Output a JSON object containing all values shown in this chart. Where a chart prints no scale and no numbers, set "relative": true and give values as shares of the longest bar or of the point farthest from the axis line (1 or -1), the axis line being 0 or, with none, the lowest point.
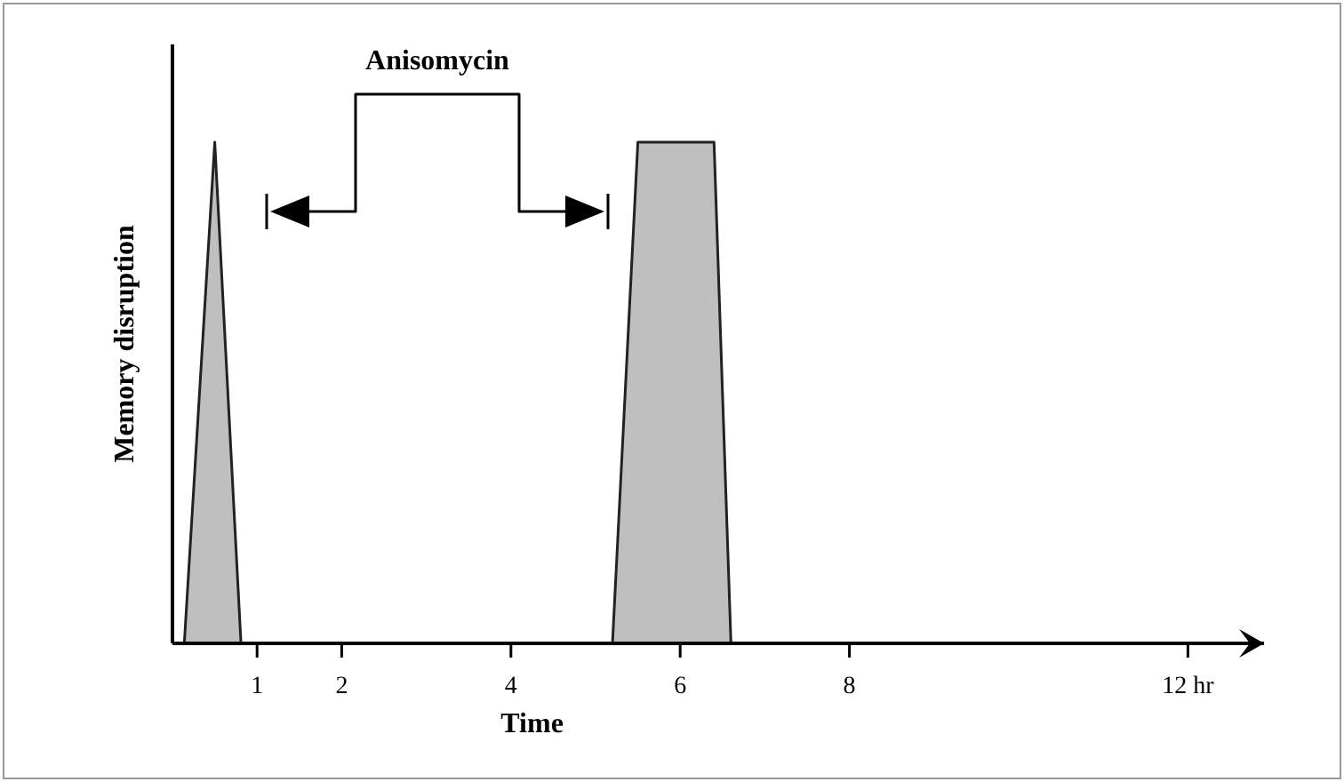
{
  "chart_data": {
    "type": "area",
    "xlabel": "Time",
    "ylabel": "Memory disruption",
    "relative": true,
    "x": [
      0.14,
      0.5,
      0.81,
      5.2,
      5.5,
      6.4,
      6.6
    ],
    "series": [
      {
        "color": "#bfbfbf",
        "values": [
          0,
          1,
          0,
          0,
          1,
          1,
          0
        ]
      }
    ],
    "xlim": [
      0,
      12.9
    ],
    "xticks": [
      1,
      2,
      4,
      6,
      8,
      {
        "value": 12,
        "label": "12 hr"
      }
    ],
    "tick_labels": "x",
    "grid": false,
    "annotations": [
      "Anisomycin"
    ]
  }
}
